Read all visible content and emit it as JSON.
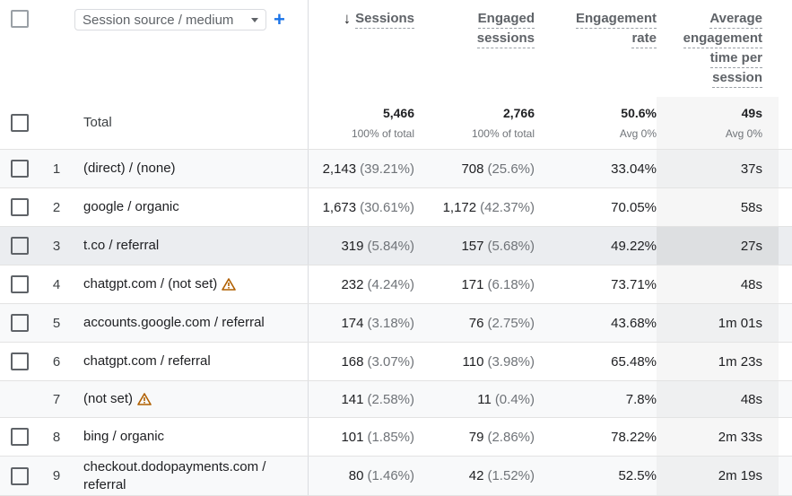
{
  "header": {
    "select_all_checkbox": false,
    "dimension_select": {
      "label": "Session source / medium",
      "icon": "caret-down-icon"
    },
    "add_dimension_icon": "plus-icon",
    "columns": [
      {
        "id": "sessions",
        "lines": [
          "Sessions"
        ],
        "sorted": "descending",
        "sort_icon": "arrow-down-icon"
      },
      {
        "id": "engaged_sessions",
        "lines": [
          "Engaged",
          "sessions"
        ]
      },
      {
        "id": "engagement_rate",
        "lines": [
          "Engagement",
          "rate"
        ]
      },
      {
        "id": "avg_engagement_time",
        "lines": [
          "Average",
          "engagement",
          "time per",
          "session"
        ]
      }
    ]
  },
  "totals": {
    "label": "Total",
    "sessions": {
      "value": "5,466",
      "sub": "100% of total"
    },
    "engaged_sessions": {
      "value": "2,766",
      "sub": "100% of total"
    },
    "engagement_rate": {
      "value": "50.6%",
      "sub": "Avg 0%"
    },
    "avg_engagement_time": {
      "value": "49s",
      "sub": "Avg 0%"
    }
  },
  "rows": [
    {
      "index": "1",
      "dimension": "(direct) / (none)",
      "warning": false,
      "has_checkbox": true,
      "sessions": "2,143",
      "sessions_pct": "(39.21%)",
      "engaged": "708",
      "engaged_pct": "(25.6%)",
      "rate": "33.04%",
      "time": "37s"
    },
    {
      "index": "2",
      "dimension": "google / organic",
      "warning": false,
      "has_checkbox": true,
      "sessions": "1,673",
      "sessions_pct": "(30.61%)",
      "engaged": "1,172",
      "engaged_pct": "(42.37%)",
      "rate": "70.05%",
      "time": "58s"
    },
    {
      "index": "3",
      "dimension": "t.co / referral",
      "warning": false,
      "has_checkbox": true,
      "sessions": "319",
      "sessions_pct": "(5.84%)",
      "engaged": "157",
      "engaged_pct": "(5.68%)",
      "rate": "49.22%",
      "time": "27s"
    },
    {
      "index": "4",
      "dimension": "chatgpt.com / (not set)",
      "warning": true,
      "has_checkbox": true,
      "sessions": "232",
      "sessions_pct": "(4.24%)",
      "engaged": "171",
      "engaged_pct": "(6.18%)",
      "rate": "73.71%",
      "time": "48s"
    },
    {
      "index": "5",
      "dimension": "accounts.google.com / referral",
      "warning": false,
      "has_checkbox": true,
      "sessions": "174",
      "sessions_pct": "(3.18%)",
      "engaged": "76",
      "engaged_pct": "(2.75%)",
      "rate": "43.68%",
      "time": "1m 01s"
    },
    {
      "index": "6",
      "dimension": "chatgpt.com / referral",
      "warning": false,
      "has_checkbox": true,
      "sessions": "168",
      "sessions_pct": "(3.07%)",
      "engaged": "110",
      "engaged_pct": "(3.98%)",
      "rate": "65.48%",
      "time": "1m 23s"
    },
    {
      "index": "7",
      "dimension": "(not set)",
      "warning": true,
      "has_checkbox": false,
      "sessions": "141",
      "sessions_pct": "(2.58%)",
      "engaged": "11",
      "engaged_pct": "(0.4%)",
      "rate": "7.8%",
      "time": "48s"
    },
    {
      "index": "8",
      "dimension": "bing / organic",
      "warning": false,
      "has_checkbox": true,
      "sessions": "101",
      "sessions_pct": "(1.85%)",
      "engaged": "79",
      "engaged_pct": "(2.86%)",
      "rate": "78.22%",
      "time": "2m 33s"
    },
    {
      "index": "9",
      "dimension": "checkout.dodopayments.com / referral",
      "warning": false,
      "has_checkbox": true,
      "sessions": "80",
      "sessions_pct": "(1.46%)",
      "engaged": "42",
      "engaged_pct": "(1.52%)",
      "rate": "52.5%",
      "time": "2m 19s"
    }
  ],
  "colors": {
    "accent": "#1a73e8",
    "warning": "#b06000",
    "row_alt": "#f8f9fa",
    "row_hover": "#ebedf0",
    "border": "#e3e3e3"
  }
}
